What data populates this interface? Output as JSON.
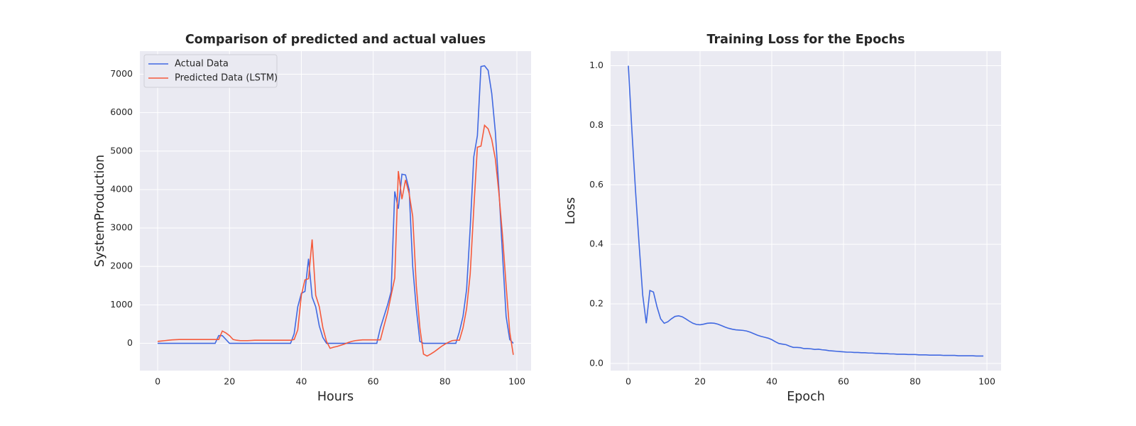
{
  "chart_data": [
    {
      "type": "line",
      "title": "Comparison of predicted and actual values",
      "xlabel": "Hours",
      "ylabel": "SystemProduction",
      "x": [
        0,
        1,
        2,
        3,
        4,
        5,
        6,
        7,
        8,
        9,
        10,
        11,
        12,
        13,
        14,
        15,
        16,
        17,
        18,
        19,
        20,
        21,
        22,
        23,
        24,
        25,
        26,
        27,
        28,
        29,
        30,
        31,
        32,
        33,
        34,
        35,
        36,
        37,
        38,
        39,
        40,
        41,
        42,
        43,
        44,
        45,
        46,
        47,
        48,
        49,
        50,
        51,
        52,
        53,
        54,
        55,
        56,
        57,
        58,
        59,
        60,
        61,
        62,
        63,
        64,
        65,
        66,
        67,
        68,
        69,
        70,
        71,
        72,
        73,
        74,
        75,
        76,
        77,
        78,
        79,
        80,
        81,
        82,
        83,
        84,
        85,
        86,
        87,
        88,
        89,
        90,
        91,
        92,
        93,
        94,
        95,
        96,
        97,
        98,
        99
      ],
      "series": [
        {
          "name": "Actual Data",
          "color": "#4169e1",
          "values": [
            0,
            0,
            0,
            0,
            0,
            0,
            0,
            0,
            0,
            0,
            0,
            0,
            0,
            0,
            0,
            0,
            0,
            200,
            200,
            100,
            0,
            0,
            0,
            0,
            0,
            0,
            0,
            0,
            0,
            0,
            0,
            0,
            0,
            0,
            0,
            0,
            0,
            0,
            250,
            950,
            1300,
            1350,
            2200,
            1200,
            950,
            450,
            150,
            0,
            0,
            0,
            0,
            0,
            0,
            0,
            0,
            0,
            0,
            0,
            0,
            0,
            0,
            0,
            400,
            700,
            1000,
            1350,
            3950,
            3500,
            4400,
            4380,
            4000,
            2000,
            900,
            50,
            0,
            0,
            0,
            0,
            0,
            0,
            0,
            0,
            0,
            0,
            300,
            700,
            1400,
            3000,
            4850,
            5400,
            7200,
            7220,
            7100,
            6500,
            5500,
            4000,
            2300,
            700,
            100,
            0
          ]
        },
        {
          "name": "Predicted Data (LSTM)",
          "color": "#f55a3c",
          "values": [
            50,
            60,
            70,
            80,
            90,
            95,
            100,
            100,
            100,
            100,
            100,
            100,
            100,
            100,
            100,
            100,
            100,
            100,
            320,
            270,
            200,
            100,
            80,
            70,
            70,
            70,
            75,
            80,
            80,
            80,
            80,
            80,
            80,
            80,
            80,
            80,
            80,
            80,
            100,
            350,
            1250,
            1650,
            1680,
            2700,
            1250,
            950,
            400,
            50,
            -130,
            -100,
            -80,
            -50,
            -20,
            20,
            50,
            70,
            80,
            90,
            90,
            90,
            90,
            90,
            90,
            450,
            800,
            1250,
            1700,
            4480,
            3750,
            4250,
            3900,
            3300,
            1500,
            400,
            -280,
            -330,
            -280,
            -220,
            -150,
            -80,
            -20,
            30,
            70,
            80,
            80,
            400,
            900,
            1800,
            3500,
            5100,
            5130,
            5670,
            5580,
            5300,
            4800,
            3900,
            2800,
            1500,
            300,
            -300
          ]
        }
      ],
      "xlim": [
        -4.95,
        103.95
      ],
      "ylim": [
        -710,
        7600
      ],
      "xticks": [
        0,
        20,
        40,
        60,
        80,
        100
      ],
      "yticks": [
        0,
        1000,
        2000,
        3000,
        4000,
        5000,
        6000,
        7000
      ],
      "grid": true,
      "legend": "upper left"
    },
    {
      "type": "line",
      "title": "Training Loss for the Epochs",
      "xlabel": "Epoch",
      "ylabel": "Loss",
      "x": [
        0,
        1,
        2,
        3,
        4,
        5,
        6,
        7,
        8,
        9,
        10,
        11,
        12,
        13,
        14,
        15,
        16,
        17,
        18,
        19,
        20,
        21,
        22,
        23,
        24,
        25,
        26,
        27,
        28,
        29,
        30,
        31,
        32,
        33,
        34,
        35,
        36,
        37,
        38,
        39,
        40,
        41,
        42,
        43,
        44,
        45,
        46,
        47,
        48,
        49,
        50,
        51,
        52,
        53,
        54,
        55,
        56,
        57,
        58,
        59,
        60,
        61,
        62,
        63,
        64,
        65,
        66,
        67,
        68,
        69,
        70,
        71,
        72,
        73,
        74,
        75,
        76,
        77,
        78,
        79,
        80,
        81,
        82,
        83,
        84,
        85,
        86,
        87,
        88,
        89,
        90,
        91,
        92,
        93,
        94,
        95,
        96,
        97,
        98,
        99
      ],
      "series": [
        {
          "color": "#4169e1",
          "values": [
            1.0,
            0.78,
            0.58,
            0.4,
            0.23,
            0.135,
            0.245,
            0.24,
            0.19,
            0.15,
            0.135,
            0.14,
            0.15,
            0.158,
            0.16,
            0.157,
            0.15,
            0.142,
            0.135,
            0.131,
            0.13,
            0.132,
            0.135,
            0.136,
            0.135,
            0.132,
            0.127,
            0.122,
            0.118,
            0.115,
            0.113,
            0.112,
            0.111,
            0.109,
            0.105,
            0.1,
            0.095,
            0.091,
            0.088,
            0.085,
            0.08,
            0.073,
            0.067,
            0.065,
            0.063,
            0.058,
            0.054,
            0.054,
            0.053,
            0.05,
            0.05,
            0.049,
            0.047,
            0.048,
            0.046,
            0.045,
            0.043,
            0.042,
            0.041,
            0.04,
            0.039,
            0.038,
            0.038,
            0.037,
            0.037,
            0.036,
            0.036,
            0.035,
            0.035,
            0.034,
            0.034,
            0.033,
            0.033,
            0.032,
            0.032,
            0.031,
            0.031,
            0.031,
            0.03,
            0.03,
            0.03,
            0.029,
            0.029,
            0.029,
            0.028,
            0.028,
            0.028,
            0.028,
            0.027,
            0.027,
            0.027,
            0.027,
            0.026,
            0.026,
            0.026,
            0.026,
            0.026,
            0.025,
            0.025,
            0.025
          ]
        }
      ],
      "xlim": [
        -4.95,
        103.95
      ],
      "ylim": [
        -0.024,
        1.049
      ],
      "xticks": [
        0,
        20,
        40,
        60,
        80,
        100
      ],
      "yticks": [
        {
          "value": 0,
          "label": "0.0"
        },
        0.2,
        0.4,
        0.6,
        0.8,
        {
          "value": 1,
          "label": "1.0"
        }
      ],
      "grid": true
    }
  ]
}
